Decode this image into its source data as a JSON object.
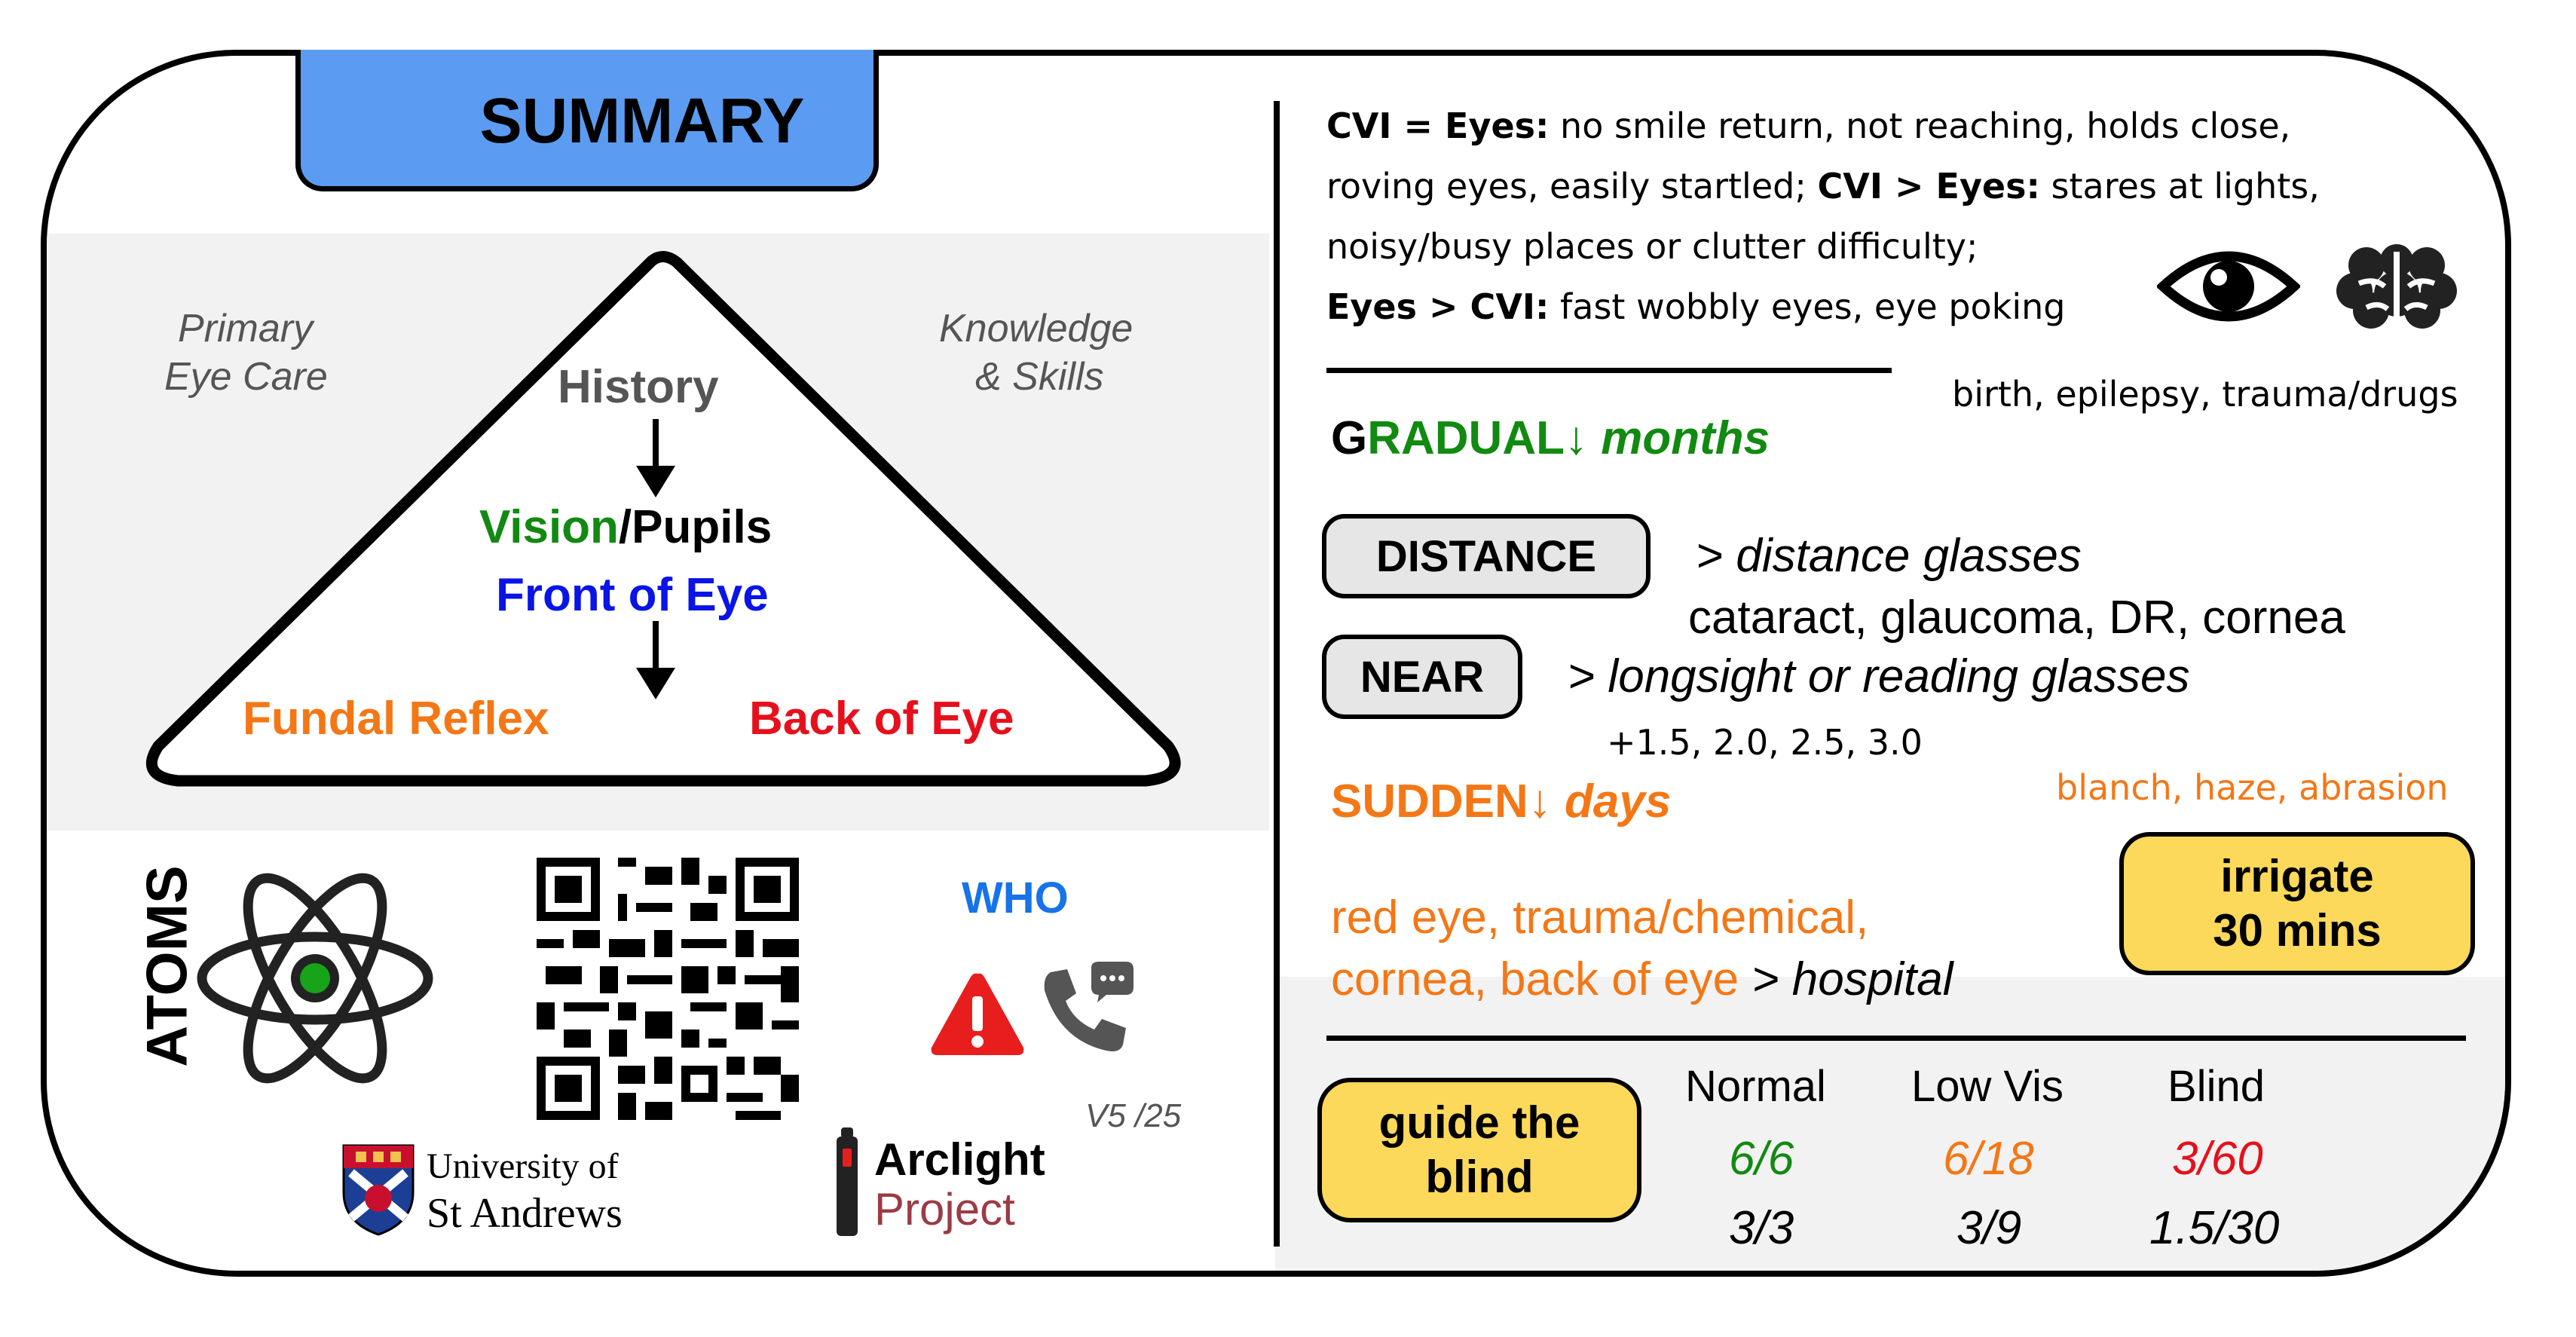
{
  "header": {
    "title": "SUMMARY"
  },
  "triangle": {
    "left_note_line1": "Primary",
    "left_note_line2": "Eye Care",
    "right_note_line1": "Knowledge",
    "right_note_line2": "& Skills",
    "step_history": "History",
    "step_vision": "Vision",
    "step_pupils": "/Pupils",
    "step_front": "Front of Eye",
    "step_fundal": "Fundal Reflex",
    "step_back": "Back of Eye"
  },
  "footer_left": {
    "atoms_label": "ATOMS",
    "who_label": "WHO",
    "version": "V5 /25",
    "uni_line1": "University of",
    "uni_line2": "St Andrews",
    "arclight_line1": "Arclight",
    "arclight_line2": "Project"
  },
  "cvi": {
    "line1_bold": "CVI = Eyes:",
    "line1_rest": " no smile return, not reaching, holds close,",
    "line2_start": "roving eyes, easily startled; ",
    "line2_bold": "CVI > Eyes:",
    "line2_rest": " stares at lights,",
    "line3": "noisy/busy places or clutter difficulty;",
    "line4_bold": "Eyes > CVI:",
    "line4_rest": " fast wobbly eyes, eye poking",
    "causes": "birth, epilepsy, trauma/drugs"
  },
  "gradual": {
    "first_letter": "G",
    "title_rest": "RADUAL↓",
    "title_time": "months",
    "distance_label": "DISTANCE",
    "distance_text": "> distance glasses",
    "distance_causes": "cataract, glaucoma, DR, cornea",
    "near_label": "NEAR",
    "near_text": "> longsight or reading glasses",
    "near_powers": "+1.5, 2.0, 2.5, 3.0"
  },
  "sudden": {
    "title": "SUDDEN↓",
    "title_time": "days",
    "chemical_signs": "blanch, haze, abrasion",
    "irrigate_line1": "irrigate",
    "irrigate_line2": "30 mins",
    "list_line1": "red eye, trauma/chemical,",
    "list_line2": "cornea, back of eye",
    "list_action": "> hospital"
  },
  "vision_table": {
    "guide_line1": "guide the",
    "guide_line2": "blind",
    "headers": [
      "Normal",
      "Low Vis",
      "Blind"
    ],
    "row1": [
      "6/6",
      "6/18",
      "3/60"
    ],
    "row2": [
      "3/3",
      "3/9",
      "1.5/30"
    ]
  },
  "colors": {
    "header_tab": "#5b9cf2",
    "green": "#118a11",
    "blue": "#0a14e6",
    "orange": "#f47716",
    "red": "#e6101d",
    "yellow_pill": "#fcd95a",
    "grey_pill": "#e6e6e6",
    "grey_panel": "#f2f2f2",
    "atom_nucleus": "#17a31a",
    "who_blue": "#1673e8",
    "uni_shield": "#1c3f95"
  },
  "icons": [
    "eye-icon",
    "brain-icon",
    "atom-icon",
    "qr-code-icon",
    "warning-icon",
    "phone-call-icon",
    "university-crest-icon",
    "arclight-torch-icon",
    "down-arrow-icon"
  ]
}
